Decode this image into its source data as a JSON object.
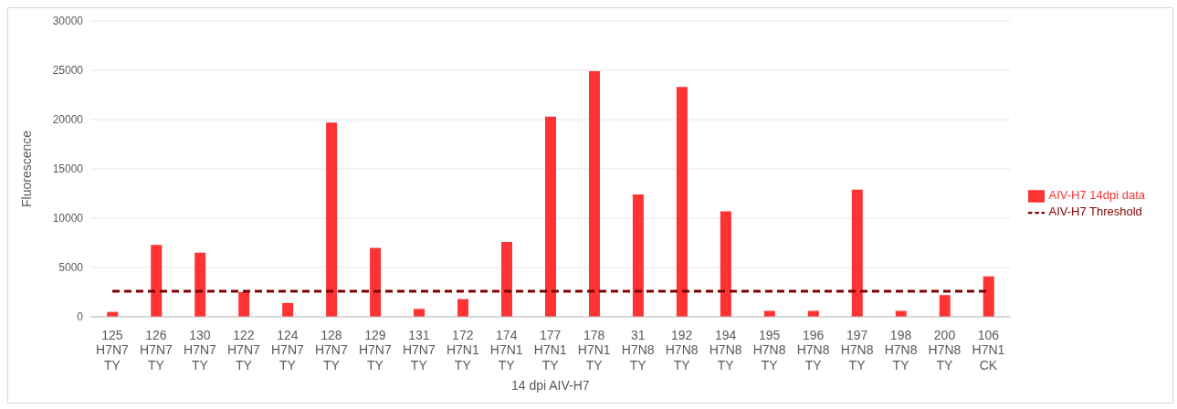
{
  "chart_data": {
    "type": "bar",
    "xlabel": "14 dpi AIV-H7",
    "ylabel": "Fluorescence",
    "categories": [
      "125\nH7N7\nTY",
      "126\nH7N7\nTY",
      "130\nH7N7\nTY",
      "122\nH7N7\nTY",
      "124\nH7N7\nTY",
      "128\nH7N7\nTY",
      "129\nH7N7\nTY",
      "131\nH7N7\nTY",
      "172\nH7N1\nTY",
      "174\nH7N1\nTY",
      "177\nH7N1\nTY",
      "178\nH7N1\nTY",
      "31\nH7N8\nTY",
      "192\nH7N8\nTY",
      "194\nH7N8\nTY",
      "195\nH7N8\nTY",
      "196\nH7N8\nTY",
      "197\nH7N8\nTY",
      "198\nH7N8\nTY",
      "200\nH7N8\nTY",
      "106\nH7N1\nCK"
    ],
    "series": [
      {
        "name": "AIV-H7 14dpi data",
        "color": "#ff3333",
        "values": [
          500,
          7300,
          6500,
          2500,
          1400,
          19700,
          7000,
          800,
          1800,
          7600,
          20300,
          24900,
          12400,
          23300,
          10700,
          600,
          600,
          12900,
          600,
          2200,
          4100
        ]
      },
      {
        "name": "AIV-H7 Threshold",
        "type": "line",
        "color": "#7f0000",
        "line_style": "dashed",
        "marker": "none",
        "values": [
          2600,
          2600,
          2600,
          2600,
          2600,
          2600,
          2600,
          2600,
          2600,
          2600,
          2600,
          2600,
          2600,
          2600,
          2600,
          2600,
          2600,
          2600,
          2600,
          2600,
          2600
        ]
      }
    ],
    "ylim": [
      0,
      30000
    ],
    "yticks": [
      0,
      5000,
      10000,
      15000,
      20000,
      25000,
      30000
    ],
    "grid": "y",
    "legend": "right"
  }
}
